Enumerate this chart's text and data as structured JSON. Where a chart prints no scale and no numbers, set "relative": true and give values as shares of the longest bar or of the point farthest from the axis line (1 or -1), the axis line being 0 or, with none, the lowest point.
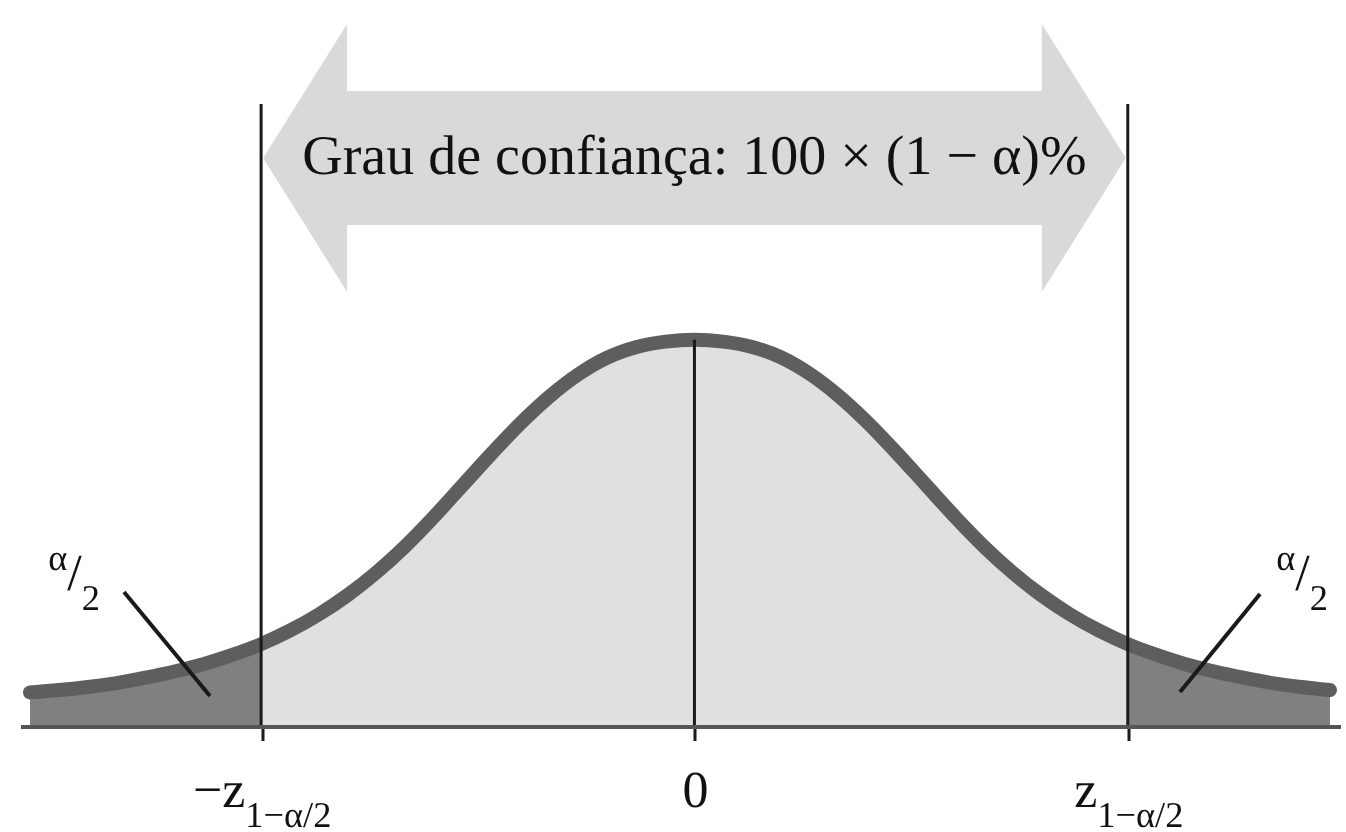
{
  "chart_data": {
    "type": "area",
    "relative": true,
    "annotations": [
      "Grau de confiança: 100 × (1 − α)%",
      "$^{α}$/$_{2}$",
      "$^{α}$/$_{2}$"
    ],
    "categories": [
      null,
      null,
      null,
      null,
      null,
      null,
      null,
      null,
      "−z$_{1−α/2}$",
      null,
      null,
      null,
      null,
      null,
      null,
      null,
      null,
      null,
      null,
      null,
      null,
      null,
      null,
      "0",
      null,
      null,
      null,
      null,
      null,
      null,
      null,
      null,
      null,
      null,
      null,
      null,
      null,
      null,
      "z$_{1−α/2}$",
      null,
      null,
      null,
      null,
      null,
      null,
      null
    ],
    "tick_labels": "x",
    "ref_lines": [
      {
        "axis": "x",
        "value": "−z$_{1−α/2}$",
        "color": "#1a1a1a"
      },
      {
        "axis": "x",
        "value": "z$_{1−α/2}$",
        "color": "#1a1a1a"
      }
    ],
    "series": [
      {
        "color": "#808080",
        "values": [
          0.087,
          0.093,
          0.101,
          0.111,
          0.125,
          0.141,
          0.16,
          0.184,
          0.212,
          null,
          null,
          null,
          null,
          null,
          null,
          null,
          null,
          null,
          null,
          null,
          null,
          null,
          null,
          null,
          null,
          null,
          null,
          null,
          null,
          null,
          null,
          null,
          null,
          null,
          null,
          null,
          null,
          null,
          null,
          null,
          null,
          null,
          null,
          null,
          null,
          null
        ]
      },
      {
        "color": "#e0e0e0",
        "values": [
          null,
          null,
          null,
          null,
          null,
          null,
          null,
          null,
          0.212,
          0.247,
          0.289,
          0.339,
          0.398,
          0.466,
          0.543,
          0.625,
          0.707,
          0.785,
          0.854,
          0.911,
          0.954,
          0.981,
          0.995,
          1,
          0.995,
          0.981,
          0.954,
          0.911,
          0.854,
          0.785,
          0.707,
          0.625,
          0.543,
          0.466,
          0.398,
          0.339,
          0.289,
          0.247,
          0.212,
          null,
          null,
          null,
          null,
          null,
          null,
          null
        ]
      },
      {
        "color": "#808080",
        "values": [
          null,
          null,
          null,
          null,
          null,
          null,
          null,
          null,
          null,
          null,
          null,
          null,
          null,
          null,
          null,
          null,
          null,
          null,
          null,
          null,
          null,
          null,
          null,
          null,
          null,
          null,
          null,
          null,
          null,
          null,
          null,
          null,
          null,
          null,
          null,
          null,
          null,
          null,
          0.212,
          0.184,
          0.16,
          0.141,
          0.125,
          0.111,
          0.101,
          0.093
        ]
      },
      {
        "type": "line",
        "color": "#5e5e5e",
        "values": [
          0.087,
          0.093,
          0.101,
          0.111,
          0.125,
          0.141,
          0.16,
          0.184,
          0.212,
          0.247,
          0.289,
          0.339,
          0.398,
          0.466,
          0.543,
          0.625,
          0.707,
          0.785,
          0.854,
          0.911,
          0.954,
          0.981,
          0.995,
          1,
          0.995,
          0.981,
          0.954,
          0.911,
          0.854,
          0.785,
          0.707,
          0.625,
          0.543,
          0.466,
          0.398,
          0.339,
          0.289,
          0.247,
          0.212,
          0.184,
          0.16,
          0.141,
          0.125,
          0.111,
          0.101,
          0.093
        ]
      },
      {
        "type": "bar",
        "color": "#1a1a1a",
        "values": [
          null,
          null,
          null,
          null,
          null,
          null,
          null,
          null,
          null,
          null,
          null,
          null,
          null,
          null,
          null,
          null,
          null,
          null,
          null,
          null,
          null,
          null,
          null,
          1,
          null,
          null,
          null,
          null,
          null,
          null,
          null,
          null,
          null,
          null,
          null,
          null,
          null,
          null,
          null,
          null,
          null,
          null,
          null,
          null,
          null,
          null
        ]
      }
    ]
  }
}
